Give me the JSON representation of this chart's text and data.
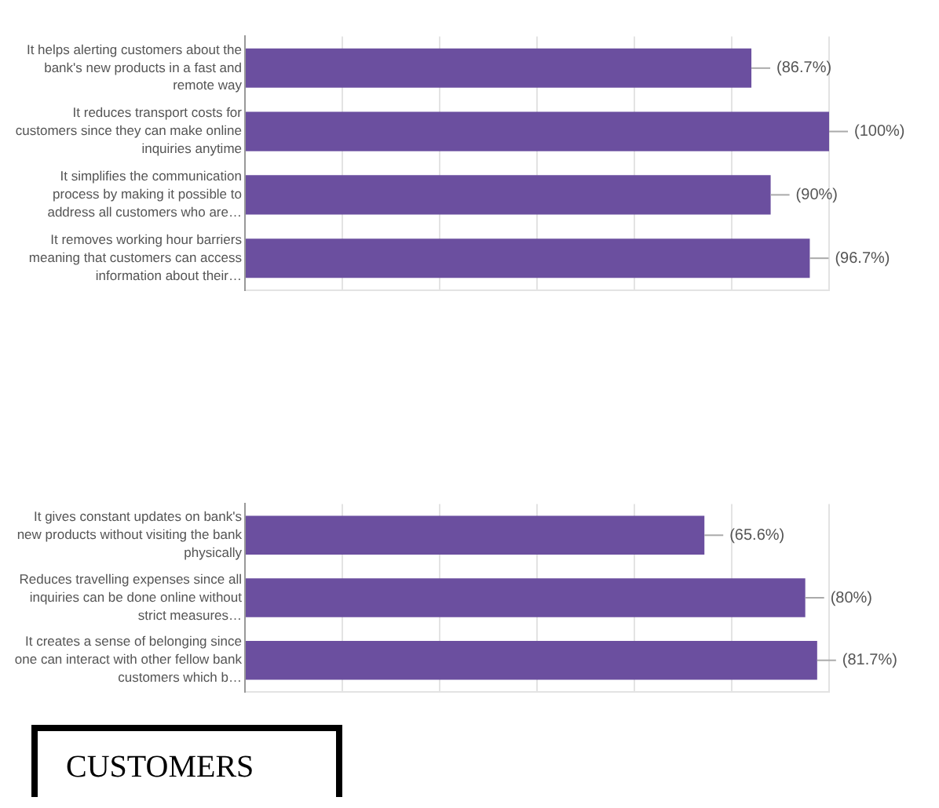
{
  "chart_data": [
    {
      "type": "bar",
      "orientation": "horizontal",
      "categories": [
        "It helps alerting customers about the bank's new products in a fast and remote way",
        "It reduces transport costs for customers since they can make online inquiries anytime",
        "It simplifies the communication process by making it possible to address all customers who are…",
        "It removes working hour barriers meaning that customers can access information about their…"
      ],
      "values": [
        86.7,
        100,
        90,
        96.7
      ],
      "color": "#6b4f9f",
      "value_labels": [
        "(86.7%)",
        "(100%)",
        "(90%)",
        "(96.7%)"
      ],
      "xlim": [
        0,
        100
      ],
      "xticks": [
        {
          "value": 0,
          "label": null
        },
        {
          "value": 16.7,
          "label": null
        },
        {
          "value": 33.3,
          "label": null
        },
        {
          "value": 50,
          "label": null
        },
        {
          "value": 66.7,
          "label": null
        },
        {
          "value": 83.3,
          "label": null
        },
        {
          "value": 100,
          "label": null
        }
      ],
      "grid": "x",
      "tick_labels": "y",
      "legend": false
    },
    {
      "type": "bar",
      "orientation": "horizontal",
      "categories": [
        "It gives constant updates on bank's new products without visiting the bank physically",
        "Reduces travelling expenses since all inquiries can be done online without strict measures…",
        "It creates a sense of belonging since one can interact with other fellow bank customers which b…"
      ],
      "values": [
        65.6,
        80,
        81.7
      ],
      "color": "#6b4f9f",
      "value_labels": [
        "(65.6%)",
        "(80%)",
        "(81.7%)"
      ],
      "xlim": [
        0,
        83.4
      ],
      "xticks": [
        {
          "value": 0,
          "label": null
        },
        {
          "value": 13.9,
          "label": null
        },
        {
          "value": 27.8,
          "label": null
        },
        {
          "value": 41.7,
          "label": null
        },
        {
          "value": 55.6,
          "label": null
        },
        {
          "value": 69.5,
          "label": null
        },
        {
          "value": 83.4,
          "label": null
        }
      ],
      "grid": "x",
      "tick_labels": "y",
      "legend": false,
      "annotations": [
        "CUSTOMERS"
      ]
    }
  ]
}
